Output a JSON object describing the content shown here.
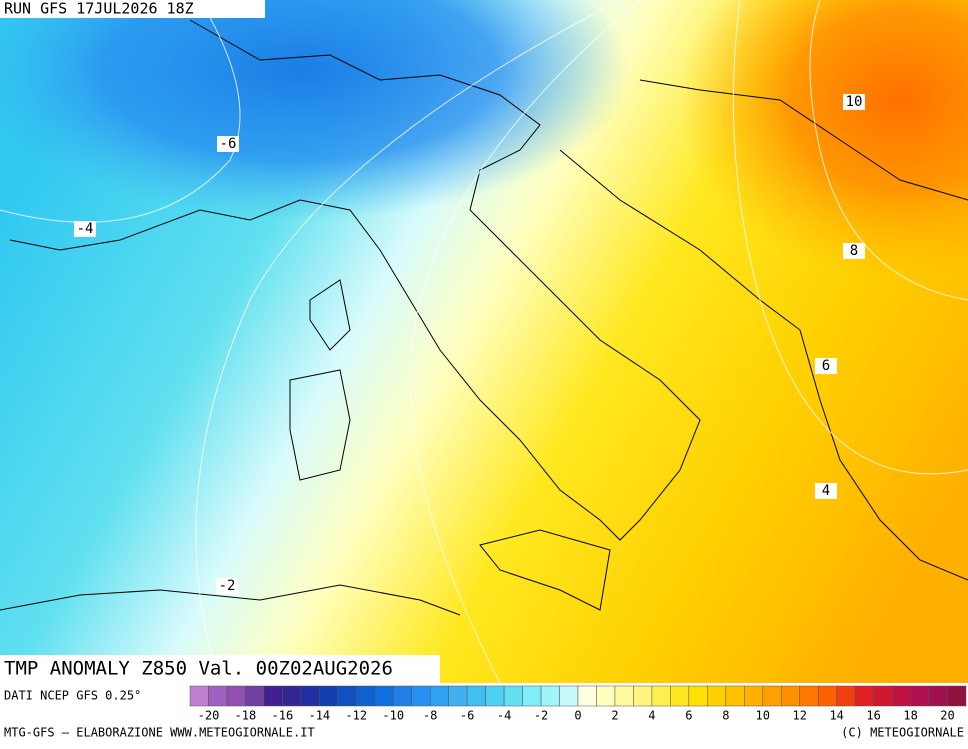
{
  "header": {
    "run": "RUN GFS 17JUL2026 18Z"
  },
  "map": {
    "contour_labels": [
      "-6",
      "-4",
      "-2",
      "4",
      "6",
      "8",
      "10"
    ]
  },
  "footer": {
    "title": "TMP ANOMALY Z850 Val. 00Z02AUG2026",
    "source": "DATI NCEP GFS 0.25°",
    "credit_left": "MTG-GFS — ELABORAZIONE WWW.METEOGIORNALE.IT",
    "credit_right": "(C) METEOGIORNALE"
  },
  "colorbar": {
    "colors": [
      "#c080d0",
      "#a060c0",
      "#9050b0",
      "#7040a0",
      "#402090",
      "#302890",
      "#2030a0",
      "#1040b0",
      "#1050c0",
      "#1060d0",
      "#1070e0",
      "#2080e8",
      "#2890f0",
      "#30a0f0",
      "#40b0f0",
      "#40c0f0",
      "#50d0f0",
      "#60e0f0",
      "#80eef8",
      "#a0f4fa",
      "#c8fafc",
      "#ffffe0",
      "#ffffc0",
      "#fffaa0",
      "#fff480",
      "#ffee50",
      "#ffe820",
      "#ffe000",
      "#ffd000",
      "#ffc000",
      "#ffb000",
      "#ffa000",
      "#ff9000",
      "#ff7800",
      "#ff6000",
      "#f04010",
      "#e02020",
      "#d01830",
      "#c01040",
      "#b01050",
      "#a01050",
      "#901040"
    ],
    "labels": [
      -20,
      -18,
      -16,
      -14,
      -12,
      -10,
      -8,
      -6,
      -4,
      -2,
      0,
      2,
      4,
      6,
      8,
      10,
      12,
      14,
      16,
      18,
      20
    ]
  }
}
